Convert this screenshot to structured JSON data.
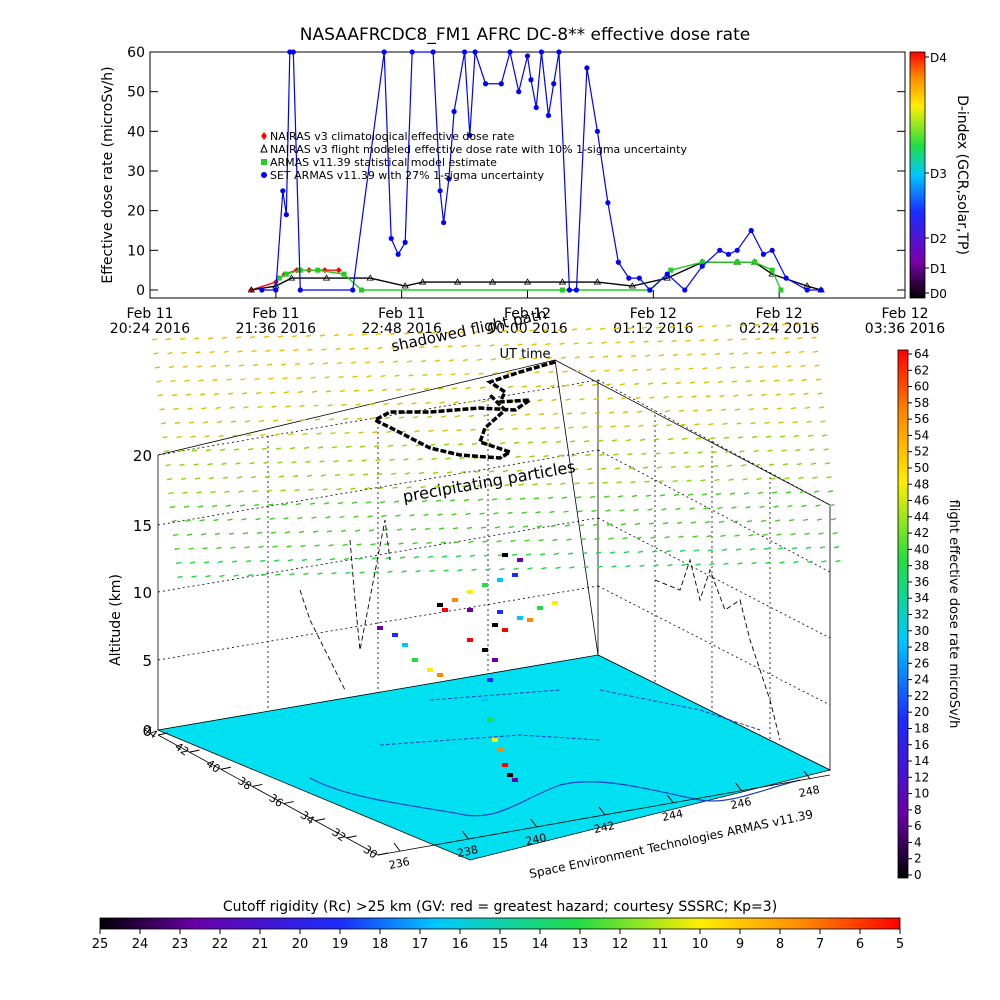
{
  "chart_data": [
    {
      "type": "line",
      "title": "NASAAFRCDC8_FM1 AFRC DC-8** effective dose rate",
      "ylabel": "Effective dose rate (microSv/h)",
      "xlabel": "UT time",
      "ylim": [
        0,
        60
      ],
      "yticks": [
        "0",
        "10",
        "20",
        "30",
        "40",
        "50",
        "60"
      ],
      "xlim": [
        "2016-02-11 20:24",
        "2016-02-12 03:36"
      ],
      "xticks": [
        {
          "l1": "Feb 11",
          "l2": "20:24 2016"
        },
        {
          "l1": "Feb 11",
          "l2": "21:36 2016"
        },
        {
          "l1": "Feb 11",
          "l2": "22:48 2016"
        },
        {
          "l1": "Feb 12",
          "l2": "00:00 2016"
        },
        {
          "l1": "Feb 12",
          "l2": "01:12 2016"
        },
        {
          "l1": "Feb 12",
          "l2": "02:24 2016"
        },
        {
          "l1": "Feb 12",
          "l2": "03:36 2016"
        }
      ],
      "legend_position": "left",
      "series": [
        {
          "name": "NAIRAS v3 climatological effective dose rate",
          "color": "#ff0000",
          "marker": "diamond",
          "x": [
            "2016-02-11 21:22",
            "2016-02-11 21:36",
            "2016-02-11 21:41",
            "2016-02-11 21:48",
            "2016-02-11 21:55",
            "2016-02-11 22:04",
            "2016-02-11 22:12"
          ],
          "y": [
            0,
            2,
            4,
            5,
            5,
            5,
            5
          ]
        },
        {
          "name": "NAIRAS v3 flight modeled effective dose rate with 10% 1-sigma uncertainty",
          "color": "#000000",
          "marker": "triangle",
          "x": [
            "2016-02-11 21:22",
            "2016-02-11 21:36",
            "2016-02-11 21:45",
            "2016-02-11 22:05",
            "2016-02-11 22:30",
            "2016-02-11 22:50",
            "2016-02-11 23:00",
            "2016-02-11 23:20",
            "2016-02-11 23:40",
            "2016-02-12 00:00",
            "2016-02-12 00:20",
            "2016-02-12 00:40",
            "2016-02-12 01:00",
            "2016-02-12 01:20",
            "2016-02-12 01:40",
            "2016-02-12 02:00",
            "2016-02-12 02:10",
            "2016-02-12 02:20",
            "2016-02-12 02:40",
            "2016-02-12 02:48"
          ],
          "y": [
            0,
            1,
            3,
            3,
            3,
            1,
            2,
            2,
            2,
            2,
            2,
            2,
            1,
            3,
            7,
            7,
            7,
            4,
            1,
            0
          ]
        },
        {
          "name": "ARMAS v11.39 statistical model estimate",
          "color": "#22cc22",
          "marker": "square",
          "x": [
            "2016-02-11 21:38",
            "2016-02-11 21:42",
            "2016-02-11 21:50",
            "2016-02-11 22:00",
            "2016-02-11 22:15",
            "2016-02-11 22:25",
            "2016-02-12 00:20",
            "2016-02-12 01:10",
            "2016-02-12 01:22",
            "2016-02-12 01:40",
            "2016-02-12 02:00",
            "2016-02-12 02:10",
            "2016-02-12 02:20",
            "2016-02-12 02:25"
          ],
          "y": [
            3,
            4,
            5,
            5,
            4,
            0,
            0,
            0,
            5,
            7,
            7,
            7,
            5,
            0
          ]
        },
        {
          "name": "SET ARMAS v11.39 with 27% 1-sigma uncertainty",
          "color": "#0000ff",
          "marker": "circle",
          "x": [
            "2016-02-11 21:28",
            "2016-02-11 21:36",
            "2016-02-11 21:40",
            "2016-02-11 21:42",
            "2016-02-11 21:44",
            "2016-02-11 21:46",
            "2016-02-11 21:50",
            "2016-02-11 22:20",
            "2016-02-11 22:38",
            "2016-02-11 22:42",
            "2016-02-11 22:46",
            "2016-02-11 22:50",
            "2016-02-11 22:54",
            "2016-02-11 23:06",
            "2016-02-11 23:10",
            "2016-02-11 23:12",
            "2016-02-11 23:15",
            "2016-02-11 23:18",
            "2016-02-11 23:24",
            "2016-02-11 23:27",
            "2016-02-11 23:30",
            "2016-02-11 23:36",
            "2016-02-11 23:45",
            "2016-02-11 23:50",
            "2016-02-11 23:55",
            "2016-02-12 00:00",
            "2016-02-12 00:02",
            "2016-02-12 00:05",
            "2016-02-12 00:08",
            "2016-02-12 00:12",
            "2016-02-12 00:15",
            "2016-02-12 00:18",
            "2016-02-12 00:24",
            "2016-02-12 00:28",
            "2016-02-12 00:34",
            "2016-02-12 00:40",
            "2016-02-12 00:46",
            "2016-02-12 00:52",
            "2016-02-12 00:58",
            "2016-02-12 01:04",
            "2016-02-12 01:10",
            "2016-02-12 01:20",
            "2016-02-12 01:30",
            "2016-02-12 01:40",
            "2016-02-12 01:50",
            "2016-02-12 01:55",
            "2016-02-12 02:00",
            "2016-02-12 02:08",
            "2016-02-12 02:15",
            "2016-02-12 02:20",
            "2016-02-12 02:28",
            "2016-02-12 02:40",
            "2016-02-12 02:48"
          ],
          "y": [
            0,
            0,
            25,
            19,
            60,
            60,
            0,
            0,
            60,
            13,
            9,
            12,
            60,
            60,
            25,
            17,
            28,
            45,
            60,
            39,
            60,
            52,
            52,
            60,
            50,
            59,
            53,
            46,
            60,
            44,
            52,
            60,
            0,
            0,
            56,
            40,
            22,
            7,
            3,
            3,
            0,
            4,
            0,
            6,
            10,
            9,
            10,
            15,
            9,
            10,
            3,
            0,
            0
          ]
        }
      ],
      "colorbar": {
        "label": "D-index (GCR,solar,TP)",
        "ticks": [
          "D0",
          "D1",
          "D2",
          "D3",
          "D4"
        ]
      }
    },
    {
      "type": "scatter",
      "zlabel": "Altitude (km)",
      "zlim": [
        0,
        20
      ],
      "zticks": [
        "0",
        "5",
        "10",
        "15",
        "20"
      ],
      "lat_ticks": [
        "30",
        "32",
        "34",
        "36",
        "38",
        "40",
        "42",
        "44"
      ],
      "lon_ticks": [
        "236",
        "238",
        "240",
        "242",
        "244",
        "246",
        "248"
      ],
      "annotations": [
        "shadowed flight path",
        "precipitating particles",
        "Space Environment Technologies ARMAS v11.39"
      ],
      "colorbar": {
        "label": "flight effective dose rate microSv/h",
        "ticks": [
          "0",
          "2",
          "4",
          "6",
          "8",
          "10",
          "12",
          "14",
          "16",
          "18",
          "20",
          "22",
          "24",
          "26",
          "28",
          "30",
          "32",
          "34",
          "36",
          "38",
          "40",
          "42",
          "44",
          "46",
          "48",
          "50",
          "52",
          "54",
          "56",
          "58",
          "60",
          "62",
          "64"
        ]
      },
      "bottom_colorbar": {
        "label": "Cutoff rigidity (Rc) >25 km (GV: red = greatest hazard; courtesy SSSRC; Kp=3)",
        "ticks": [
          "25",
          "24",
          "23",
          "22",
          "21",
          "20",
          "19",
          "18",
          "17",
          "16",
          "15",
          "14",
          "13",
          "12",
          "11",
          "10",
          "9",
          "8",
          "7",
          "6",
          "5"
        ]
      }
    }
  ]
}
